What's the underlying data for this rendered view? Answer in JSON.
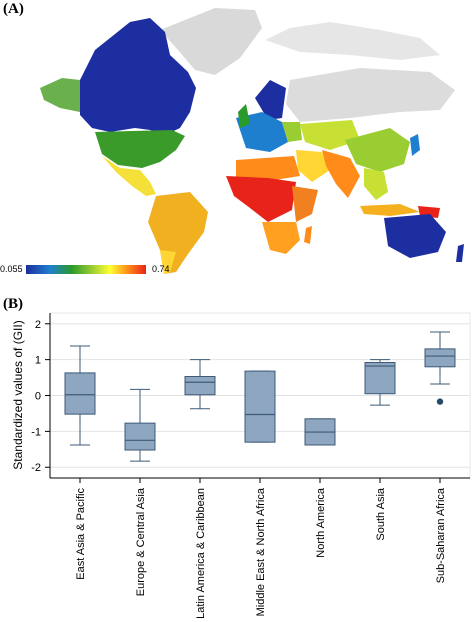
{
  "panel_a": {
    "label": "(A)",
    "scale_min_label": "0.055",
    "scale_max_label": "0.74",
    "colors": {
      "no_data": "#d9d9d9",
      "ocean": "#ffffff",
      "scale": [
        "#1d2ea0",
        "#1f7fcf",
        "#2a9a2a",
        "#9acd32",
        "#ffff33",
        "#ff8c1a",
        "#e8231a"
      ]
    }
  },
  "panel_b": {
    "label": "(B)"
  },
  "chart_data": {
    "type": "box",
    "ylabel": "Standardized values of (GII)",
    "ylim": [
      -2.3,
      2.3
    ],
    "yticks": [
      2,
      1,
      0,
      -1,
      -2
    ],
    "ytick_labels": [
      "2",
      "1",
      "0",
      "-1",
      "-2"
    ],
    "grid": true,
    "box_color": "#8ea6bf",
    "box_edge_color": "#3d5a78",
    "categories": [
      "East Asia & Pacific",
      "Europe & Central Asia",
      "Latin America & Caribbean",
      "Middle East & North Africa",
      "North America",
      "South Asia",
      "Sub-Saharan Africa"
    ],
    "boxes": [
      {
        "whisker_low": -1.38,
        "q1": -0.52,
        "median": 0.02,
        "q3": 0.63,
        "whisker_high": 1.38,
        "outliers": []
      },
      {
        "whisker_low": -1.83,
        "q1": -1.52,
        "median": -1.25,
        "q3": -0.77,
        "whisker_high": 0.17,
        "outliers": []
      },
      {
        "whisker_low": -0.37,
        "q1": 0.02,
        "median": 0.37,
        "q3": 0.53,
        "whisker_high": 1.0,
        "outliers": []
      },
      {
        "whisker_low": -1.3,
        "q1": -1.3,
        "median": -0.53,
        "q3": 0.68,
        "whisker_high": 0.68,
        "outliers": []
      },
      {
        "whisker_low": -1.38,
        "q1": -1.38,
        "median": -1.02,
        "q3": -0.65,
        "whisker_high": -0.65,
        "outliers": []
      },
      {
        "whisker_low": -0.27,
        "q1": 0.05,
        "median": 0.82,
        "q3": 0.92,
        "whisker_high": 1.0,
        "outliers": []
      },
      {
        "whisker_low": 0.32,
        "q1": 0.8,
        "median": 1.1,
        "q3": 1.3,
        "whisker_high": 1.77,
        "outliers": [
          -0.17
        ]
      }
    ]
  }
}
